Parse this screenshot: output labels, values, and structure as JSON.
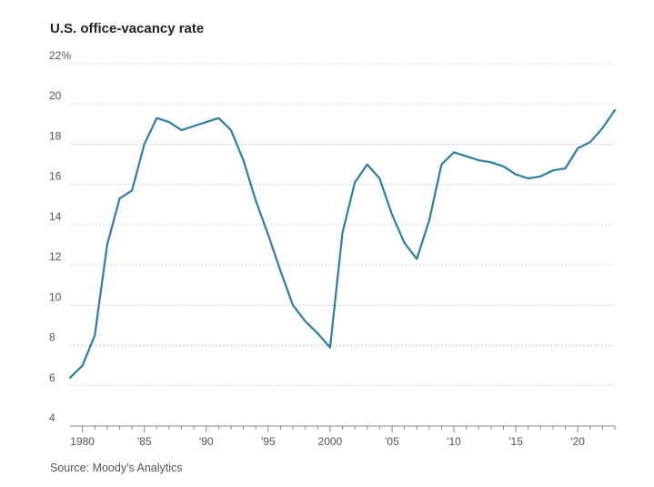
{
  "chart_data": {
    "type": "line",
    "title": "U.S. office-vacancy rate",
    "source": "Source: Moody's Analytics",
    "y_unit": "%",
    "ylim": [
      4,
      22
    ],
    "yticks": [
      4,
      6,
      8,
      10,
      12,
      14,
      16,
      18,
      20,
      22
    ],
    "ytick_labels": [
      "4",
      "6",
      "8",
      "10",
      "12",
      "14",
      "16",
      "18",
      "20",
      "22%"
    ],
    "xlim": [
      1979,
      2023
    ],
    "xticks": [
      1980,
      1985,
      1990,
      1995,
      2000,
      2005,
      2010,
      2015,
      2020
    ],
    "xtick_labels": [
      "1980",
      "'85",
      "'90",
      "'95",
      "2000",
      "'05",
      "'10",
      "'15",
      "'20"
    ],
    "grid": true,
    "series": [
      {
        "name": "U.S. office-vacancy rate",
        "color": "#2b7ea1",
        "x": [
          1979,
          1980,
          1981,
          1982,
          1983,
          1984,
          1985,
          1986,
          1987,
          1988,
          1989,
          1990,
          1991,
          1992,
          1993,
          1994,
          1995,
          1996,
          1997,
          1998,
          1999,
          2000,
          2001,
          2002,
          2003,
          2004,
          2005,
          2006,
          2007,
          2008,
          2009,
          2010,
          2011,
          2012,
          2013,
          2014,
          2015,
          2016,
          2017,
          2018,
          2019,
          2020,
          2021,
          2022,
          2023
        ],
        "values": [
          6.4,
          7.0,
          8.5,
          13.0,
          15.3,
          15.7,
          18.0,
          19.3,
          19.1,
          18.7,
          18.9,
          19.1,
          19.3,
          18.7,
          17.2,
          15.2,
          13.5,
          11.7,
          10.0,
          9.2,
          8.6,
          7.9,
          13.6,
          16.1,
          17.0,
          16.3,
          14.5,
          13.1,
          12.3,
          14.2,
          17.0,
          17.6,
          17.4,
          17.2,
          17.1,
          16.9,
          16.5,
          16.3,
          16.4,
          16.7,
          16.8,
          17.8,
          18.1,
          18.8,
          19.7
        ]
      }
    ]
  }
}
